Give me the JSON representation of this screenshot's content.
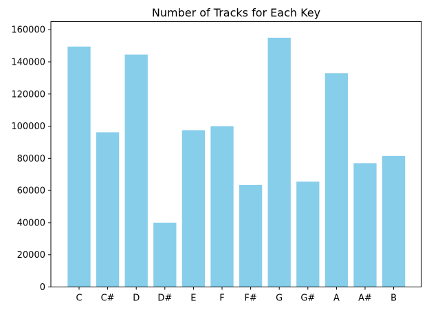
{
  "chart_data": {
    "type": "bar",
    "title": "Number of Tracks for Each Key",
    "xlabel": "",
    "ylabel": "",
    "categories": [
      "C",
      "C#",
      "D",
      "D#",
      "E",
      "F",
      "F#",
      "G",
      "G#",
      "A",
      "A#",
      "B"
    ],
    "values": [
      149500,
      96200,
      144500,
      40000,
      97500,
      100000,
      63500,
      155000,
      65500,
      133000,
      77000,
      81500
    ],
    "ylim": [
      0,
      165000
    ],
    "yticks": [
      0,
      20000,
      40000,
      60000,
      80000,
      100000,
      120000,
      140000,
      160000
    ],
    "ytick_labels": [
      "0",
      "20000",
      "40000",
      "60000",
      "80000",
      "100000",
      "120000",
      "140000",
      "160000"
    ],
    "grid": false,
    "bar_color": "#87CEEB"
  }
}
